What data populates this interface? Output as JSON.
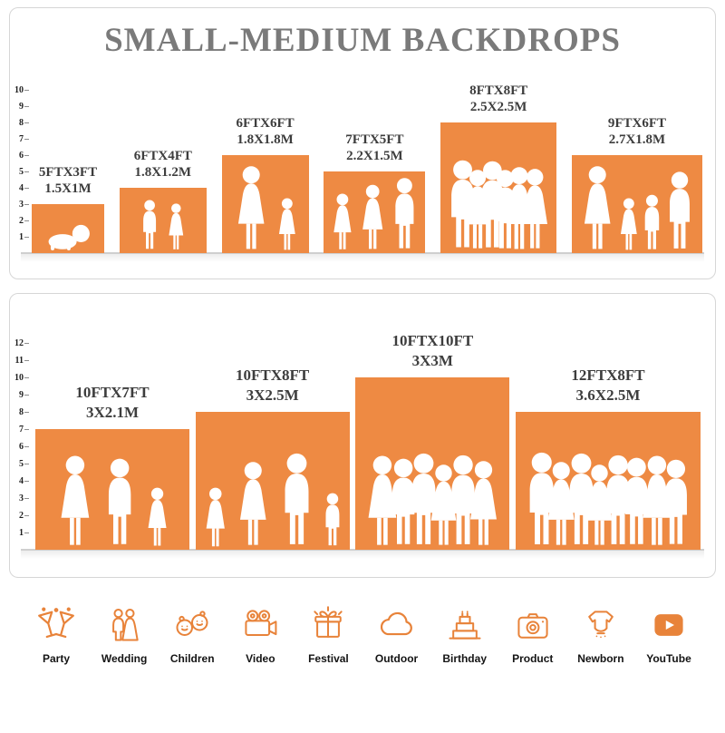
{
  "title": "SMALL-MEDIUM BACKDROPS",
  "colors": {
    "bar_orange": "#EE8A43",
    "icon_orange": "#E8833A",
    "title_gray": "#7A7A7A",
    "label_dark": "#3D3D3D",
    "baseline_gray": "#CFCFCF",
    "silhouette_white": "#FFFFFF"
  },
  "chart_data": [
    {
      "type": "bar",
      "title": "SMALL-MEDIUM BACKDROPS",
      "xlabel": "",
      "ylabel": "",
      "ylim": [
        0,
        10
      ],
      "ruler": [
        "1",
        "2",
        "3",
        "4",
        "5",
        "6",
        "7",
        "8",
        "9",
        "10"
      ],
      "categories": [
        "5FTX3FT",
        "6FTX4FT",
        "6FTX6FT",
        "7FTX5FT",
        "8FTX8FT",
        "9FTX6FT"
      ],
      "values": [
        3,
        4,
        6,
        5,
        8,
        6
      ],
      "widths_ft": [
        5,
        6,
        6,
        7,
        8,
        9
      ],
      "bars": [
        {
          "label_ft": "5FTX3FT",
          "label_m": "1.5X1M",
          "width_ft": 5,
          "height_ft": 3,
          "figures": [
            "baby"
          ]
        },
        {
          "label_ft": "6FTX4FT",
          "label_m": "1.8X1.2M",
          "width_ft": 6,
          "height_ft": 4,
          "figures": [
            "child",
            "child-f"
          ]
        },
        {
          "label_ft": "6FTX6FT",
          "label_m": "1.8X1.8M",
          "width_ft": 6,
          "height_ft": 6,
          "figures": [
            "adult-f",
            "child-f"
          ]
        },
        {
          "label_ft": "7FTX5FT",
          "label_m": "2.2X1.5M",
          "width_ft": 7,
          "height_ft": 5,
          "figures": [
            "child-f",
            "adult-f",
            "adult-m"
          ]
        },
        {
          "label_ft": "8FTX8FT",
          "label_m": "2.5X2.5M",
          "width_ft": 8,
          "height_ft": 8,
          "figures": [
            "adult-m",
            "adult-f",
            "adult-m",
            "adult-m",
            "adult-f",
            "adult-f"
          ]
        },
        {
          "label_ft": "9FTX6FT",
          "label_m": "2.7X1.8M",
          "width_ft": 9,
          "height_ft": 6,
          "figures": [
            "adult-f",
            "child-f",
            "child",
            "adult-m"
          ]
        }
      ]
    },
    {
      "type": "bar",
      "title": "",
      "xlabel": "",
      "ylabel": "",
      "ylim": [
        0,
        12
      ],
      "ruler": [
        "1",
        "2",
        "3",
        "4",
        "5",
        "6",
        "7",
        "8",
        "9",
        "10",
        "11",
        "12"
      ],
      "categories": [
        "10FTX7FT",
        "10FTX8FT",
        "10FTX10FT",
        "12FTX8FT"
      ],
      "values": [
        7,
        8,
        10,
        8
      ],
      "widths_ft": [
        10,
        10,
        10,
        12
      ],
      "bars": [
        {
          "label_ft": "10FTX7FT",
          "label_m": "3X2.1M",
          "width_ft": 10,
          "height_ft": 7,
          "figures": [
            "adult-f",
            "adult-m",
            "child-f"
          ]
        },
        {
          "label_ft": "10FTX8FT",
          "label_m": "3X2.5M",
          "width_ft": 10,
          "height_ft": 8,
          "figures": [
            "child-f",
            "adult-f",
            "adult-m",
            "child"
          ]
        },
        {
          "label_ft": "10FTX10FT",
          "label_m": "3X3M",
          "width_ft": 10,
          "height_ft": 10,
          "figures": [
            "adult-f",
            "adult-m",
            "adult-m",
            "adult-f",
            "adult-m",
            "adult-f"
          ]
        },
        {
          "label_ft": "12FTX8FT",
          "label_m": "3.6X2.5M",
          "width_ft": 12,
          "height_ft": 8,
          "figures": [
            "adult-m",
            "adult-f",
            "adult-m",
            "adult-f",
            "adult-m",
            "adult-m",
            "adult-f",
            "adult-m"
          ]
        }
      ]
    }
  ],
  "categories": [
    {
      "id": "party",
      "label": "Party",
      "icon": "party-icon"
    },
    {
      "id": "wedding",
      "label": "Wedding",
      "icon": "wedding-icon"
    },
    {
      "id": "children",
      "label": "Children",
      "icon": "children-icon"
    },
    {
      "id": "video",
      "label": "Video",
      "icon": "video-icon"
    },
    {
      "id": "festival",
      "label": "Festival",
      "icon": "festival-icon"
    },
    {
      "id": "outdoor",
      "label": "Outdoor",
      "icon": "outdoor-icon"
    },
    {
      "id": "birthday",
      "label": "Birthday",
      "icon": "birthday-icon"
    },
    {
      "id": "product",
      "label": "Product",
      "icon": "product-icon"
    },
    {
      "id": "newborn",
      "label": "Newborn",
      "icon": "newborn-icon"
    },
    {
      "id": "youtube",
      "label": "YouTube",
      "icon": "youtube-icon"
    }
  ]
}
